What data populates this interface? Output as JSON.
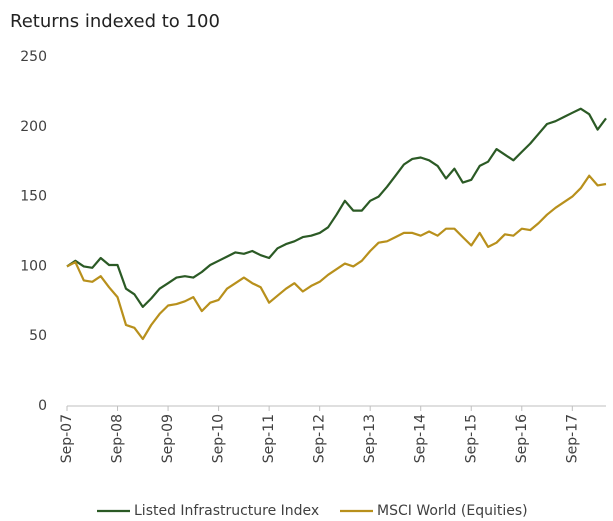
{
  "chart_data": {
    "type": "line",
    "title": "Returns indexed to 100",
    "categories": [
      "Sep-07",
      null,
      null,
      null,
      null,
      null,
      "Sep-08",
      null,
      null,
      null,
      null,
      null,
      "Sep-09",
      null,
      null,
      null,
      null,
      null,
      "Sep-10",
      null,
      null,
      null,
      null,
      null,
      "Sep-11",
      null,
      null,
      null,
      null,
      null,
      "Sep-12",
      null,
      null,
      null,
      null,
      null,
      "Sep-13",
      null,
      null,
      null,
      null,
      null,
      "Sep-14",
      null,
      null,
      null,
      null,
      null,
      "Sep-15",
      null,
      null,
      null,
      null,
      null,
      "Sep-16",
      null,
      null,
      null,
      null,
      null,
      "Sep-17",
      null,
      null,
      null,
      null
    ],
    "series": [
      {
        "name": "Listed Infrastructure Index",
        "color": "#2b5a25",
        "values": [
          100,
          104,
          100,
          99,
          106,
          101,
          101,
          84,
          80,
          71,
          77,
          84,
          88,
          92,
          93,
          92,
          96,
          101,
          104,
          107,
          110,
          109,
          111,
          108,
          106,
          113,
          116,
          118,
          121,
          122,
          124,
          128,
          137,
          147,
          140,
          140,
          147,
          150,
          157,
          165,
          173,
          177,
          178,
          176,
          172,
          163,
          170,
          160,
          162,
          172,
          175,
          184,
          180,
          176,
          182,
          188,
          195,
          202,
          204,
          207,
          210,
          213,
          209,
          198,
          206
        ]
      },
      {
        "name": "MSCI World (Equities)",
        "color": "#b8901c",
        "values": [
          100,
          103,
          90,
          89,
          93,
          85,
          78,
          58,
          56,
          48,
          58,
          66,
          72,
          73,
          75,
          78,
          68,
          74,
          76,
          84,
          88,
          92,
          88,
          85,
          74,
          79,
          84,
          88,
          82,
          86,
          89,
          94,
          98,
          102,
          100,
          104,
          111,
          117,
          118,
          121,
          124,
          124,
          122,
          125,
          122,
          127,
          127,
          121,
          115,
          124,
          114,
          117,
          123,
          122,
          127,
          126,
          131,
          137,
          142,
          146,
          150,
          156,
          165,
          158,
          159
        ]
      }
    ],
    "ylim": [
      0,
      250
    ],
    "yticks": [
      0,
      50,
      100,
      150,
      200,
      250
    ],
    "grid": false,
    "legend": "bottom"
  }
}
